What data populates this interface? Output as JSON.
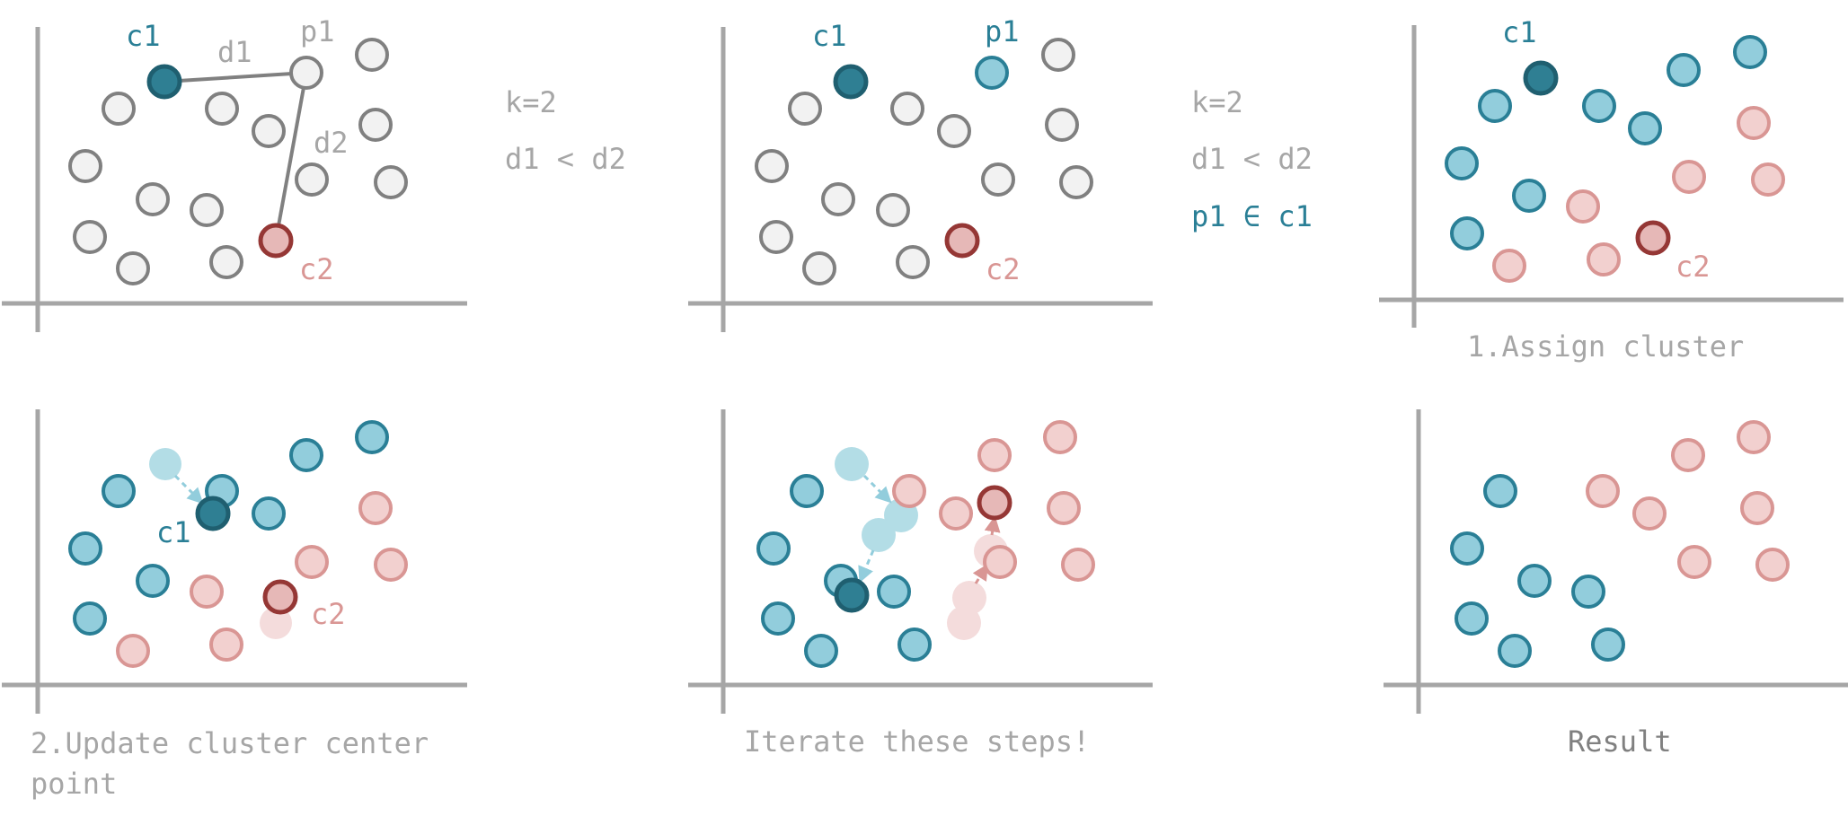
{
  "colors": {
    "axis": "#a6a6a6",
    "gray_stroke": "#808080",
    "gray_fill": "#f2f2f2",
    "gray_text": "#a6a6a6",
    "blue": "#2a7f96",
    "blue_fill": "#92cddc",
    "blue_dark_stroke": "#1f5f70",
    "blue_dark_fill": "#2f7f93",
    "blue_faded": "#b3dde6",
    "red": "#d99694",
    "red_fill": "#f2d0cf",
    "red_dark_stroke": "#953735",
    "red_dark_fill": "#e6b8b7",
    "red_faded": "#f4dcdc",
    "result_text": "#808080"
  },
  "panel1": {
    "c1_label": "c1",
    "p1_label": "p1",
    "c2_label": "c2",
    "d1_label": "d1",
    "d2_label": "d2"
  },
  "note1": {
    "k": "k=2",
    "compare": "d1 < d2"
  },
  "panel2": {
    "c1_label": "c1",
    "p1_label": "p1",
    "c2_label": "c2"
  },
  "note2": {
    "k": "k=2",
    "compare": "d1 < d2",
    "membership": "p1 ∈ c1"
  },
  "panel3": {
    "c1_label": "c1",
    "c2_label": "c2",
    "caption": "1.Assign cluster"
  },
  "panel4": {
    "c1_label": "c1",
    "c2_label": "c2",
    "caption_line1": "2.Update cluster center",
    "caption_line2": "point"
  },
  "panel5": {
    "caption": "Iterate these steps!"
  },
  "panel6": {
    "caption": "Result"
  }
}
